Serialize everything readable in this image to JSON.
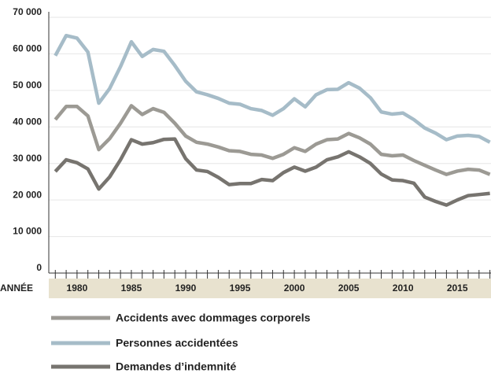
{
  "chart_data": {
    "type": "line",
    "x_label": "ANNÉE",
    "x": [
      1978,
      1979,
      1980,
      1981,
      1982,
      1983,
      1984,
      1985,
      1986,
      1987,
      1988,
      1989,
      1990,
      1991,
      1992,
      1993,
      1994,
      1995,
      1996,
      1997,
      1998,
      1999,
      2000,
      2001,
      2002,
      2003,
      2004,
      2005,
      2006,
      2007,
      2008,
      2009,
      2010,
      2011,
      2012,
      2013,
      2014,
      2015,
      2016,
      2017,
      2018
    ],
    "series": [
      {
        "name": "Accidents avec dommages corporels",
        "color": "#9c9a94",
        "values": [
          42000,
          45600,
          45600,
          43000,
          33800,
          36800,
          41000,
          45800,
          43400,
          45000,
          44000,
          41000,
          37500,
          35800,
          35300,
          34500,
          33500,
          33300,
          32500,
          32300,
          31400,
          32500,
          34300,
          33300,
          35300,
          36500,
          36700,
          38200,
          37000,
          35300,
          32500,
          32100,
          32300,
          30800,
          29500,
          28200,
          27000,
          27900,
          28400,
          28200,
          27000
        ]
      },
      {
        "name": "Personnes accidentées",
        "color": "#a6bcc8",
        "values": [
          59500,
          65000,
          64300,
          60500,
          46500,
          50500,
          56500,
          63300,
          59300,
          61200,
          60700,
          56800,
          52500,
          49600,
          48800,
          47800,
          46500,
          46200,
          45000,
          44500,
          43200,
          45000,
          47700,
          45500,
          48800,
          50200,
          50300,
          52100,
          50600,
          48000,
          44100,
          43500,
          43800,
          42000,
          39700,
          38300,
          36500,
          37500,
          37700,
          37400,
          35800
        ]
      },
      {
        "name": "Demandes d’indemnité",
        "color": "#77746f",
        "values": [
          27800,
          31000,
          30200,
          28500,
          23000,
          26300,
          31000,
          36500,
          35300,
          35700,
          36600,
          36700,
          31300,
          28200,
          27800,
          26200,
          24200,
          24500,
          24500,
          25600,
          25300,
          27500,
          29000,
          27900,
          29000,
          31000,
          31800,
          33200,
          31800,
          30000,
          27100,
          25500,
          25300,
          24600,
          20800,
          19600,
          18600,
          20000,
          21200,
          21500,
          21800
        ]
      }
    ],
    "xlim": [
      1977.4,
      2018.1
    ],
    "xticks": [
      1980,
      1985,
      1990,
      1995,
      2000,
      2005,
      2010,
      2015
    ],
    "ylim": [
      0,
      70000
    ],
    "yticks": [
      0,
      {
        "value": 10000,
        "label": "10 000"
      },
      {
        "value": 20000,
        "label": "20 000"
      },
      {
        "value": 30000,
        "label": "30 000"
      },
      {
        "value": 40000,
        "label": "40 000"
      },
      {
        "value": 50000,
        "label": "50 000"
      },
      {
        "value": 60000,
        "label": "60 000"
      },
      {
        "value": 70000,
        "label": "70 000"
      }
    ],
    "grid": true
  }
}
